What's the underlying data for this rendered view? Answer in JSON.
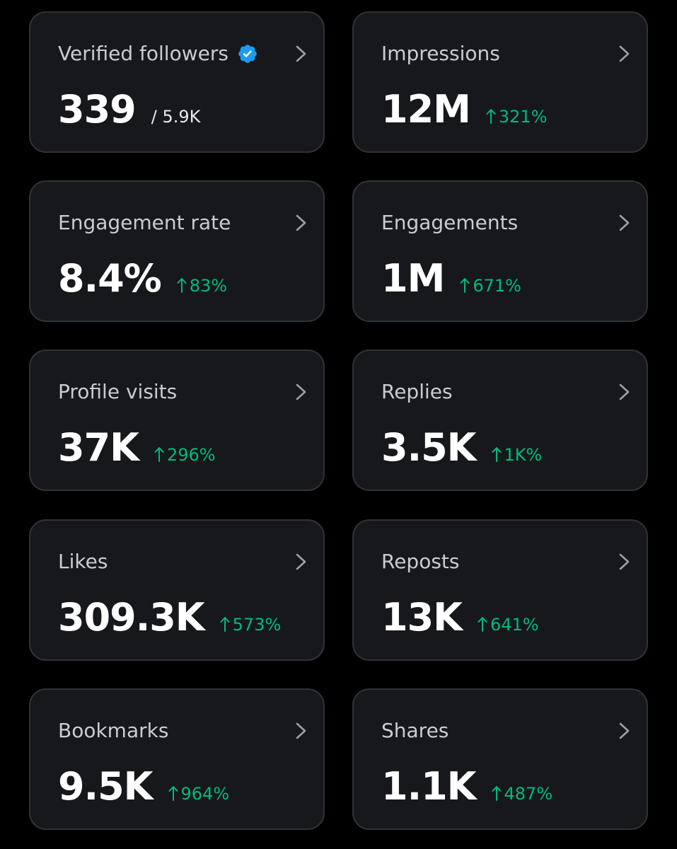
{
  "colors": {
    "background": "#000000",
    "card_background": "#16181c",
    "card_border": "#2f3336",
    "title_text": "#c9cdd1",
    "value_text": "#ffffff",
    "positive_change": "#00ba7c",
    "verified_badge": "#1d9bf0"
  },
  "icons": {
    "verified": "verified-badge-icon",
    "chevron": "chevron-right-icon",
    "trend": "arrow-up-icon"
  },
  "cards": [
    {
      "title": "Verified followers",
      "value": "339",
      "sub": "/ 5.9K",
      "change": ""
    },
    {
      "title": "Impressions",
      "value": "12M",
      "sub": "",
      "change": "321%"
    },
    {
      "title": "Engagement rate",
      "value": "8.4%",
      "sub": "",
      "change": "83%"
    },
    {
      "title": "Engagements",
      "value": "1M",
      "sub": "",
      "change": "671%"
    },
    {
      "title": "Profile visits",
      "value": "37K",
      "sub": "",
      "change": "296%"
    },
    {
      "title": "Replies",
      "value": "3.5K",
      "sub": "",
      "change": "1K%"
    },
    {
      "title": "Likes",
      "value": "309.3K",
      "sub": "",
      "change": "573%"
    },
    {
      "title": "Reposts",
      "value": "13K",
      "sub": "",
      "change": "641%"
    },
    {
      "title": "Bookmarks",
      "value": "9.5K",
      "sub": "",
      "change": "964%"
    },
    {
      "title": "Shares",
      "value": "1.1K",
      "sub": "",
      "change": "487%"
    }
  ]
}
